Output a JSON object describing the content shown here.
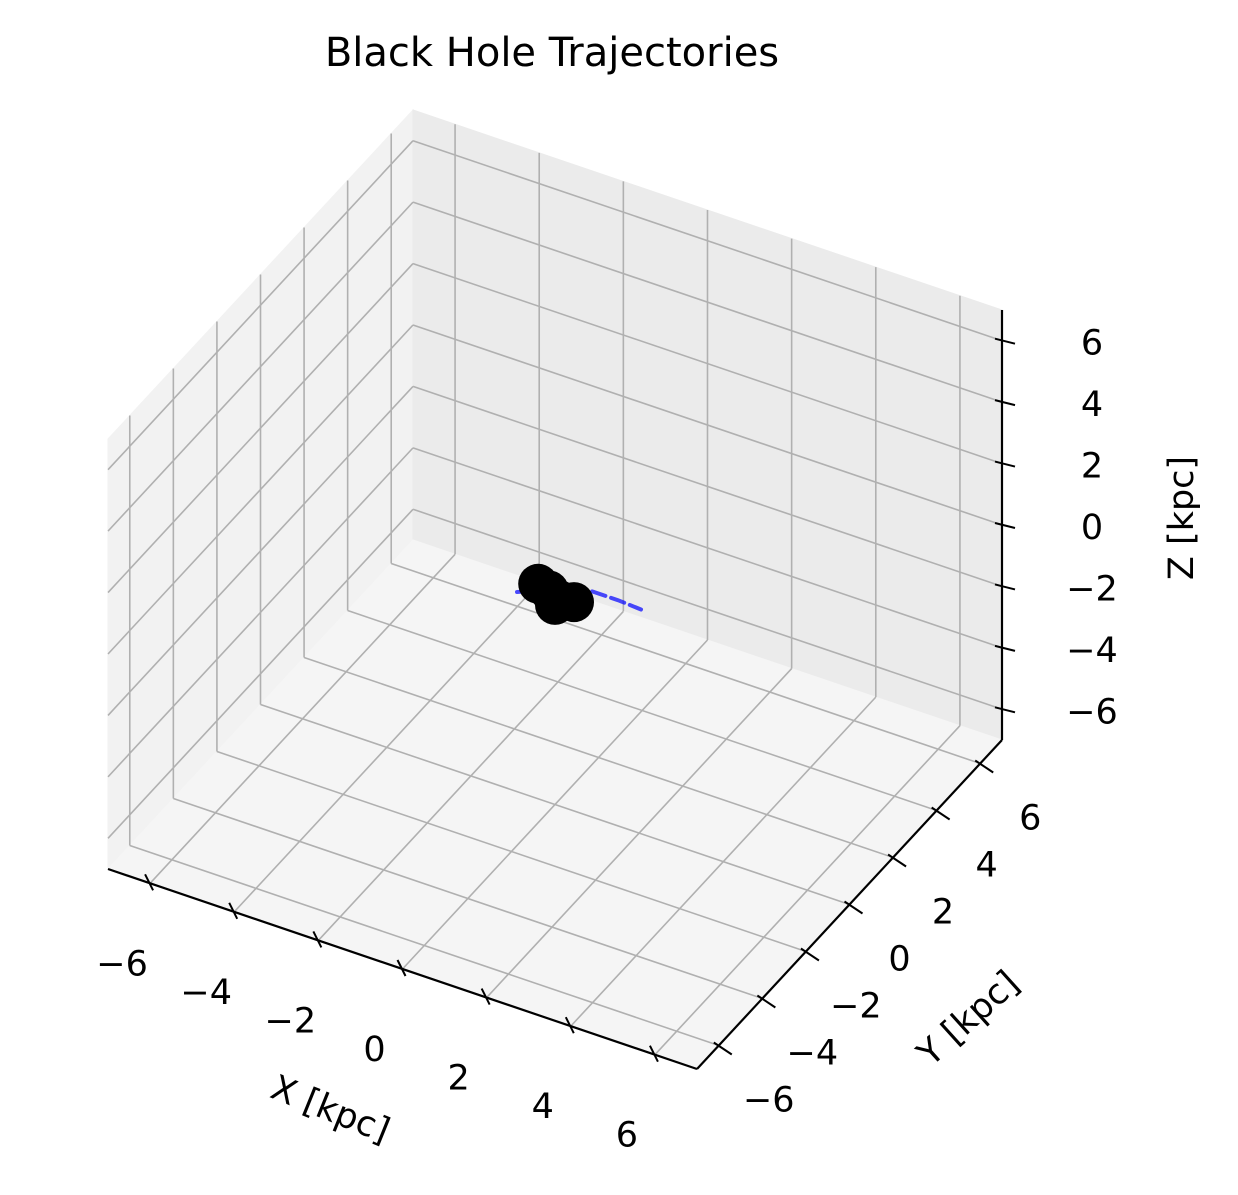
{
  "chart_data": {
    "type": "scatter",
    "projection": "3d",
    "title": "Black Hole Trajectories",
    "xlabel": "X [kpc]",
    "ylabel": "Y [kpc]",
    "zlabel": "Z [kpc]",
    "xlim": [
      -7,
      7
    ],
    "ylim": [
      -7,
      7
    ],
    "zlim": [
      -7,
      7
    ],
    "ticks": [
      -6,
      -4,
      -2,
      0,
      2,
      4,
      6
    ],
    "tick_labels": [
      "−6",
      "−4",
      "−2",
      "0",
      "2",
      "4",
      "6"
    ],
    "grid": true,
    "trajectory_color": "#0000ff",
    "marker_color": "#000000",
    "trajectories": [
      {
        "x": [
          -0.6,
          -0.2,
          0.3,
          0.9,
          1.6,
          2.2
        ],
        "y": [
          0.2,
          0.1,
          0.0,
          -0.1,
          -0.2,
          -0.3
        ],
        "z": [
          0.0,
          0.15,
          0.3,
          0.45,
          0.55,
          0.6
        ]
      },
      {
        "x": [
          -0.9,
          -0.7,
          -0.5,
          -0.3
        ],
        "y": [
          0.3,
          0.2,
          0.1,
          0.0
        ],
        "z": [
          -0.6,
          -0.35,
          -0.15,
          0.0
        ]
      },
      {
        "x": [
          -0.8,
          -0.5,
          -0.3
        ],
        "y": [
          -0.2,
          -0.1,
          0.0
        ],
        "z": [
          -0.3,
          -0.2,
          -0.1
        ]
      }
    ],
    "points": [
      {
        "x": -0.4,
        "y": 0.0,
        "z": 0.0
      },
      {
        "x": -0.2,
        "y": 0.1,
        "z": -0.2
      },
      {
        "x": 0.1,
        "y": 0.0,
        "z": -0.3
      },
      {
        "x": 0.4,
        "y": 0.1,
        "z": -0.3
      },
      {
        "x": 0.0,
        "y": 0.0,
        "z": -0.5
      }
    ]
  }
}
